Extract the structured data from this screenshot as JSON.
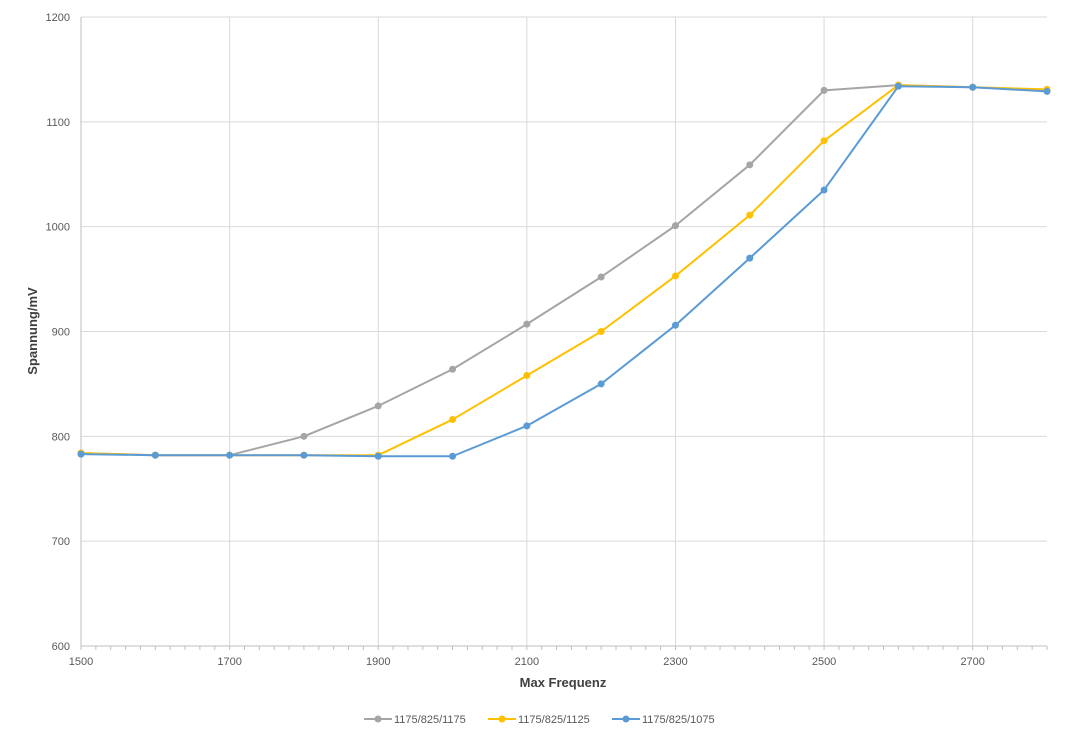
{
  "chart_data": {
    "type": "line",
    "title": "",
    "xlabel": "Max Frequenz",
    "ylabel": "Spannung/mV",
    "xlim": [
      1500,
      2800
    ],
    "ylim": [
      600,
      1200
    ],
    "x_ticks": [
      1500,
      1700,
      1900,
      2100,
      2300,
      2500,
      2700
    ],
    "x_ticks_labels": [
      "1500",
      "1700",
      "1900",
      "2100",
      "2300",
      "2500",
      "2700"
    ],
    "y_ticks": [
      600,
      700,
      800,
      900,
      1000,
      1100,
      1200
    ],
    "y_ticks_labels": [
      "600",
      "700",
      "800",
      "900",
      "1000",
      "1100",
      "1200"
    ],
    "x_grid_values": [
      1500,
      1700,
      1900,
      2100,
      2300,
      2500,
      2700
    ],
    "grid": true,
    "legend_position": "bottom",
    "x": [
      1500,
      1600,
      1700,
      1800,
      1900,
      2000,
      2100,
      2200,
      2300,
      2400,
      2500,
      2600,
      2700,
      2800
    ],
    "series": [
      {
        "name": "1175/825/1175",
        "color": "#A5A5A5",
        "values": [
          784,
          782,
          782,
          800,
          829,
          864,
          907,
          952,
          1001,
          1059,
          1130,
          1135,
          1133,
          1130
        ]
      },
      {
        "name": "1175/825/1125",
        "color": "#FFC000",
        "values": [
          784,
          782,
          782,
          782,
          782,
          816,
          858,
          900,
          953,
          1011,
          1082,
          1135,
          1133,
          1131
        ]
      },
      {
        "name": "1175/825/1075",
        "color": "#5B9BD5",
        "values": [
          783,
          782,
          782,
          782,
          781,
          781,
          810,
          850,
          906,
          970,
          1035,
          1134,
          1133,
          1129
        ]
      }
    ]
  }
}
